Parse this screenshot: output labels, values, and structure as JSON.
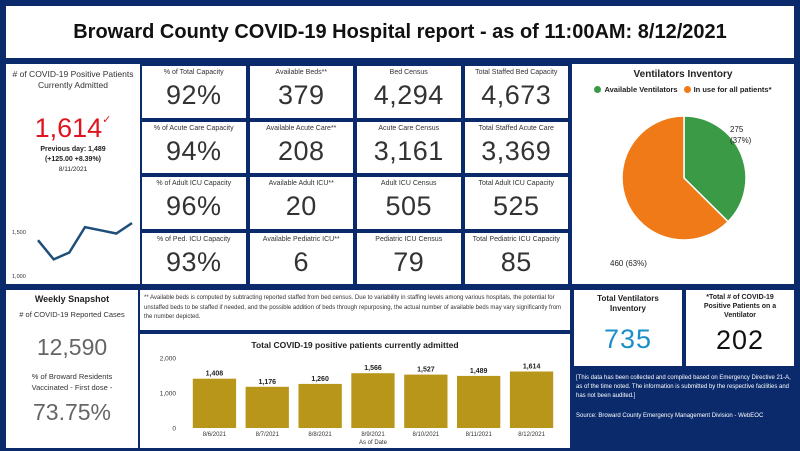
{
  "header": {
    "title": "Broward County COVID-19 Hospital report - as of 11:00AM: 8/12/2021"
  },
  "positive_panel": {
    "label": "# of COVID-19 Positive Patients Currently Admitted",
    "value": "1,614",
    "check_glyph": "✓",
    "previous_day": "Previous day: 1,489",
    "change": "(+125.00 +8.39%)",
    "date": "8/11/2021",
    "y_tick_top": "1,500",
    "y_tick_bottom": "1,000",
    "accent_color": "#e0141e"
  },
  "sparkline": {
    "type": "line",
    "x": [
      "8/6/2021",
      "8/7/2021",
      "8/8/2021",
      "8/9/2021",
      "8/10/2021",
      "8/11/2021",
      "8/12/2021"
    ],
    "values": [
      1408,
      1176,
      1260,
      1566,
      1527,
      1489,
      1614
    ],
    "ylim": [
      1000,
      1700
    ]
  },
  "grid": [
    {
      "label": "% of Total Capacity",
      "value": "92%"
    },
    {
      "label": "Available Beds**",
      "value": "379"
    },
    {
      "label": "Bed Census",
      "value": "4,294"
    },
    {
      "label": "Total Staffed Bed Capacity",
      "value": "4,673"
    },
    {
      "label": "% of Acute Care Capacity",
      "value": "94%"
    },
    {
      "label": "Available Acute Care**",
      "value": "208"
    },
    {
      "label": "Acute Care Census",
      "value": "3,161"
    },
    {
      "label": "Total Staffed Acute Care",
      "value": "3,369"
    },
    {
      "label": "% of Adult ICU Capacity",
      "value": "96%"
    },
    {
      "label": "Available Adult ICU**",
      "value": "20"
    },
    {
      "label": "Adult ICU Census",
      "value": "505"
    },
    {
      "label": "Total Adult ICU Capacity",
      "value": "525"
    },
    {
      "label": "% of Ped. ICU Capacity",
      "value": "93%"
    },
    {
      "label": "Available Pediatric ICU**",
      "value": "6"
    },
    {
      "label": "Pediatric ICU Census",
      "value": "79"
    },
    {
      "label": "Total Pediatric ICU Capacity",
      "value": "85"
    }
  ],
  "ventilators": {
    "title": "Ventilators Inventory",
    "legend": [
      {
        "name": "Available Ventilators",
        "color": "#3a9a46"
      },
      {
        "name": "In use for all patients*",
        "color": "#f07a17"
      }
    ],
    "available_label": "275",
    "available_pct": "(37%)",
    "in_use_label": "460 (63%)",
    "chart_data": {
      "type": "pie",
      "categories": [
        "Available Ventilators",
        "In use for all patients*"
      ],
      "values": [
        275,
        460
      ]
    }
  },
  "weekly": {
    "title": "Weekly Snapshot",
    "cases_label": "# of COVID-19 Reported Cases",
    "cases_value": "12,590",
    "vacc_label": "% of Broward Residents Vaccinated - First dose -",
    "vacc_value": "73.75%"
  },
  "footnote": "** Available beds is computed by subtracting reported staffed from bed census. Due to variability in staffing levels among various hospitals, the potential for unstaffed beds to be staffed if needed, and the possible addition of beds through repurposing, the actual number of available beds may vary significantly from the number depicted.",
  "bar_chart": {
    "title": "Total COVID-19 positive patients currently admitted",
    "xlabel": "As of Date",
    "y_ticks": [
      "2,000",
      "1,000",
      "0"
    ],
    "bar_color": "#b8961a",
    "chart_data": {
      "type": "bar",
      "categories": [
        "8/6/2021",
        "8/7/2021",
        "8/8/2021",
        "8/9/2021",
        "8/10/2021",
        "8/11/2021",
        "8/12/2021"
      ],
      "values": [
        1408,
        1176,
        1260,
        1566,
        1527,
        1489,
        1614
      ],
      "value_labels": [
        "1,408",
        "1,176",
        "1,260",
        "1,566",
        "1,527",
        "1,489",
        "1,614"
      ],
      "title": "Total COVID-19 positive patients currently admitted",
      "xlabel": "As of Date",
      "ylim": [
        0,
        2000
      ]
    }
  },
  "total_vent": {
    "label": "Total Ventilators Inventory",
    "value": "735",
    "color": "#1a8fc9"
  },
  "vent_patients": {
    "label": "*Total # of COVID-19 Positive Patients on a Ventilator",
    "value": "202"
  },
  "disclaimer": {
    "text": "[This data has been collected and compiled based on Emergency Directive 21-A, as of the time noted. The information is submitted by the respective facilities and has not been audited.]",
    "source": "Source: Broward County Emergency Management Division - WebEOC"
  }
}
